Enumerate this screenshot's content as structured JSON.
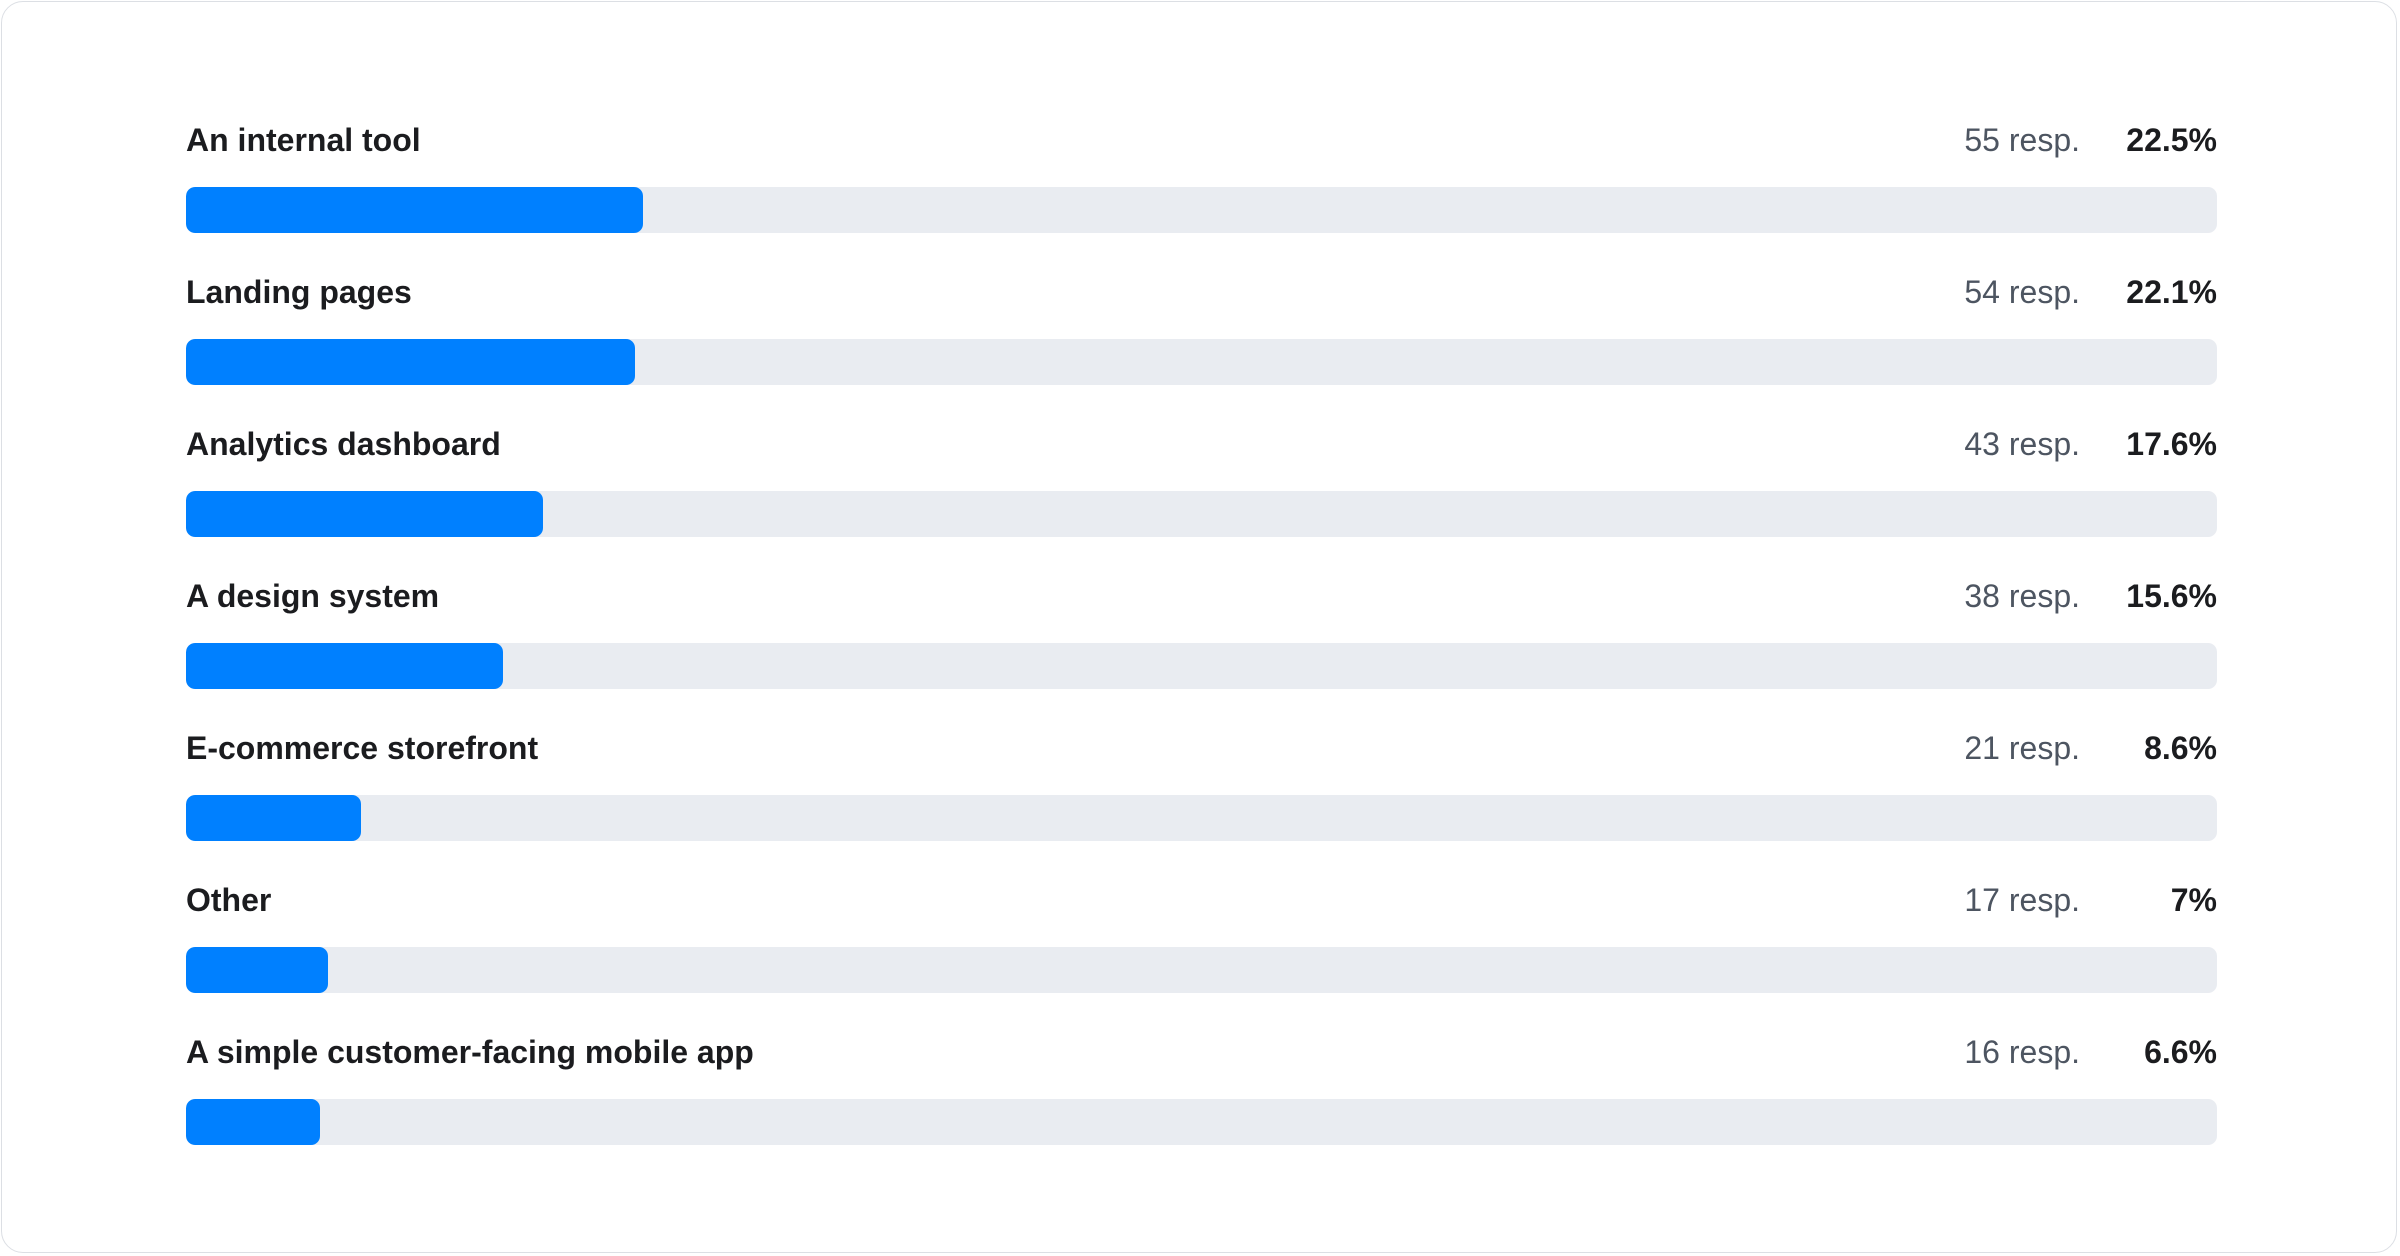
{
  "chart_data": {
    "type": "bar",
    "orientation": "horizontal",
    "colors": {
      "fill": "#0080ff",
      "track": "#e9ecf1"
    },
    "items": [
      {
        "label": "An internal tool",
        "responses": "55 resp.",
        "percent_label": "22.5%",
        "value": 22.5
      },
      {
        "label": "Landing pages",
        "responses": "54 resp.",
        "percent_label": "22.1%",
        "value": 22.1
      },
      {
        "label": "Analytics dashboard",
        "responses": "43 resp.",
        "percent_label": "17.6%",
        "value": 17.6
      },
      {
        "label": "A design system",
        "responses": "38 resp.",
        "percent_label": "15.6%",
        "value": 15.6
      },
      {
        "label": "E-commerce storefront",
        "responses": "21 resp.",
        "percent_label": "8.6%",
        "value": 8.6
      },
      {
        "label": "Other",
        "responses": "17 resp.",
        "percent_label": "7%",
        "value": 7
      },
      {
        "label": "A simple customer-facing mobile app",
        "responses": "16 resp.",
        "percent_label": "6.6%",
        "value": 6.6
      }
    ],
    "xlim": [
      0,
      100
    ]
  }
}
